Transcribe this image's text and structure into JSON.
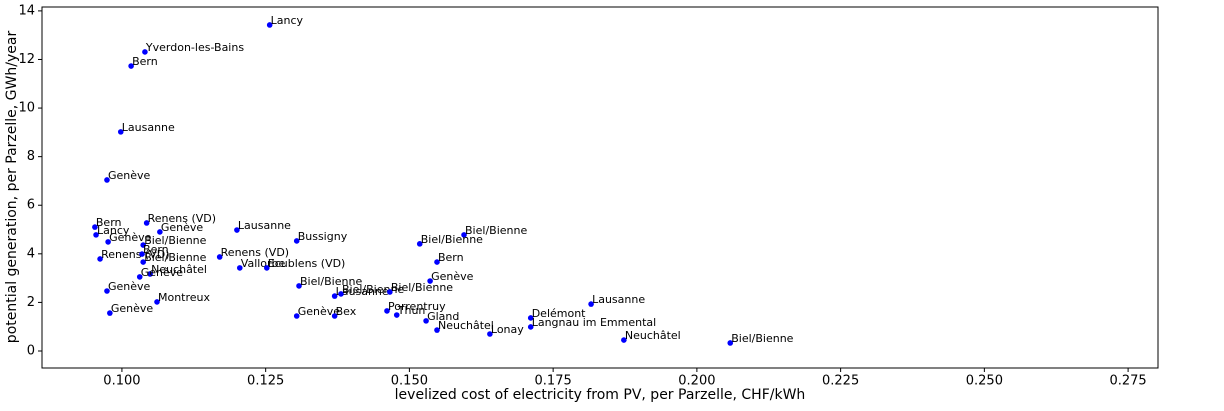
{
  "chart_data": {
    "type": "scatter",
    "x_label": "levelized cost of electricity from PV, per Parzelle, CHF/kWh",
    "y_label": "potential generation, per Parzelle, GWh/year",
    "color": "#0000ff",
    "xlim": [
      0.0861,
      0.2802
    ],
    "ylim": [
      -0.7,
      14.16
    ],
    "xticks": [
      {
        "value": 0.1,
        "label": "0.100"
      },
      {
        "value": 0.125,
        "label": "0.125"
      },
      {
        "value": 0.15,
        "label": "0.150"
      },
      {
        "value": 0.175,
        "label": "0.175"
      },
      {
        "value": 0.2,
        "label": "0.200"
      },
      {
        "value": 0.225,
        "label": "0.225"
      },
      {
        "value": 0.25,
        "label": "0.250"
      },
      {
        "value": 0.275,
        "label": "0.275"
      }
    ],
    "yticks": [
      0,
      2,
      4,
      6,
      8,
      10,
      12,
      14
    ],
    "labels": [
      "Lancy",
      "Yverdon-les-Bains",
      "Bern",
      "Lausanne",
      "Genève",
      "Bern",
      "Lancy",
      "Renens (VD)",
      "Genève",
      "Lausanne",
      "Genève",
      "Biel/Bienne",
      "Bussigny",
      "Biel/Bienne",
      "Biel/Bienne",
      "Renens (VD)",
      "Bern",
      "Biel/Bienne",
      "Renens (VD)",
      "Vallorbe",
      "Ecublens (VD)",
      "Bern",
      "Neuchâtel",
      "Genève",
      "Genève",
      "Genève",
      "Biel/Bienne",
      "Lausanne",
      "Biel/Bienne",
      "Biel/Bienne",
      "Montreux",
      "Lausanne",
      "Porrentruy",
      "Genève",
      "Thun",
      "Genève",
      "Bex",
      "Gland",
      "Delémont",
      "Langnau im Emmental",
      "Neuchâtel",
      "Lonay",
      "Neuchâtel",
      "Biel/Bienne"
    ],
    "x": [
      0.1257,
      0.104,
      0.1016,
      0.0998,
      0.0974,
      0.0953,
      0.0955,
      0.1043,
      0.1066,
      0.12,
      0.0976,
      0.1037,
      0.1304,
      0.1595,
      0.1518,
      0.0962,
      0.1035,
      0.1037,
      0.117,
      0.1205,
      0.1252,
      0.1548,
      0.1049,
      0.1031,
      0.1536,
      0.0974,
      0.1308,
      0.137,
      0.1381,
      0.1466,
      0.1061,
      0.1816,
      0.1461,
      0.0979,
      0.1478,
      0.1304,
      0.137,
      0.1529,
      0.1711,
      0.1711,
      0.1548,
      0.164,
      0.1873,
      0.2058
    ],
    "values": [
      13.42,
      12.31,
      11.73,
      9.02,
      7.04,
      5.1,
      4.78,
      5.27,
      4.9,
      4.98,
      4.49,
      4.36,
      4.53,
      4.78,
      4.41,
      3.79,
      3.99,
      3.66,
      3.87,
      3.42,
      3.42,
      3.66,
      3.17,
      3.05,
      2.88,
      2.47,
      2.68,
      2.26,
      2.35,
      2.43,
      2.02,
      1.93,
      1.65,
      1.56,
      1.48,
      1.44,
      1.44,
      1.24,
      1.36,
      0.99,
      0.86,
      0.7,
      0.45,
      0.33
    ]
  }
}
